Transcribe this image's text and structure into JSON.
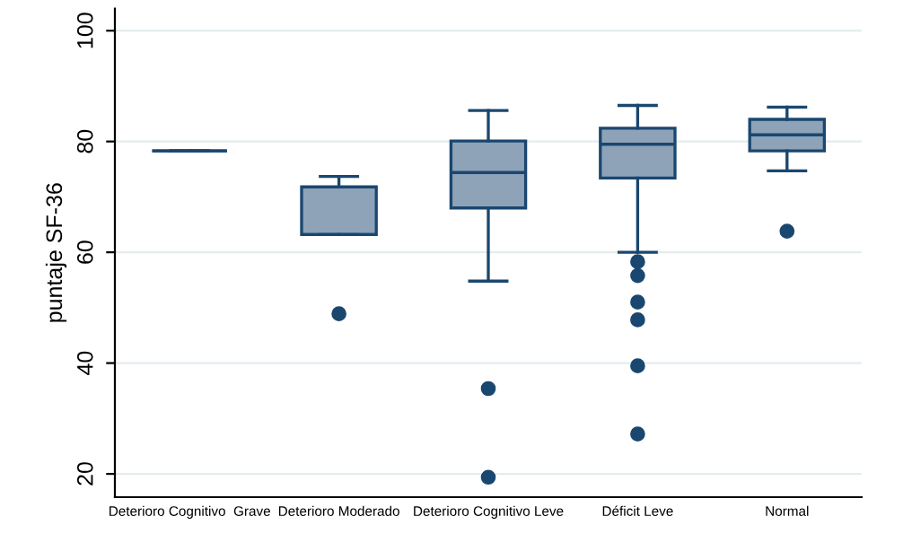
{
  "chart_data": {
    "type": "box",
    "ylabel": "puntaje SF-36",
    "categories": [
      "Deterioro Cognitivo  Grave",
      "Deterioro Moderado",
      "Deterioro Cognitivo Leve",
      "Déficit Leve",
      "Normal"
    ],
    "boxes": [
      {
        "low": 78.3,
        "q1": 78.3,
        "median": 78.3,
        "q3": 78.3,
        "high": 78.3
      },
      {
        "low": 63.2,
        "q1": 63.2,
        "median": 63.2,
        "q3": 71.8,
        "high": 73.7,
        "outliers": [
          48.9
        ]
      },
      {
        "low": 54.8,
        "q1": 68,
        "median": 74.4,
        "q3": 80.1,
        "high": 85.6,
        "outliers": [
          35.4,
          19.4
        ]
      },
      {
        "low": 60,
        "q1": 73.4,
        "median": 79.5,
        "q3": 82.4,
        "high": 86.5,
        "outliers": [
          58.3,
          55.8,
          51,
          47.8,
          39.5,
          27.2
        ]
      },
      {
        "low": 74.7,
        "q1": 78.3,
        "median": 81.2,
        "q3": 84,
        "high": 86.2,
        "outliers": [
          63.8
        ]
      }
    ],
    "colors": [
      "#1a476f",
      "#8ea3b8",
      "#8ea3b8",
      "#8ea3b8",
      "#8ea3b8"
    ],
    "ylim": [
      15.8,
      104
    ],
    "yticks": [
      20,
      40,
      60,
      80,
      100
    ],
    "grid": "y"
  }
}
